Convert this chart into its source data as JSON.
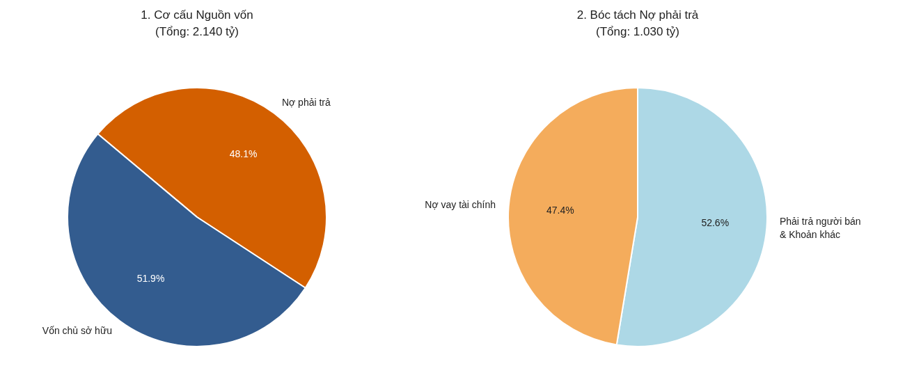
{
  "chart_data": [
    {
      "type": "pie",
      "title": "1. Cơ cấu Nguồn vốn",
      "subtitle": "(Tổng: 2.140 tỷ)",
      "categories": [
        "Nợ phải trả",
        "Vốn chủ sở hữu"
      ],
      "values": [
        48.1,
        51.9
      ],
      "colors": [
        "#d35f00",
        "#335c8f"
      ],
      "value_labels": [
        "48.1%",
        "51.9%"
      ]
    },
    {
      "type": "pie",
      "title": "2. Bóc tách Nợ phải trả",
      "subtitle": "(Tổng: 1.030 tỷ)",
      "categories": [
        "Phải trả người bán\n& Khoản khác",
        "Nợ vay tài chính"
      ],
      "values": [
        52.6,
        47.4
      ],
      "colors": [
        "#add8e6",
        "#f4ac5c"
      ],
      "value_labels": [
        "52.6%",
        "47.4%"
      ]
    }
  ]
}
